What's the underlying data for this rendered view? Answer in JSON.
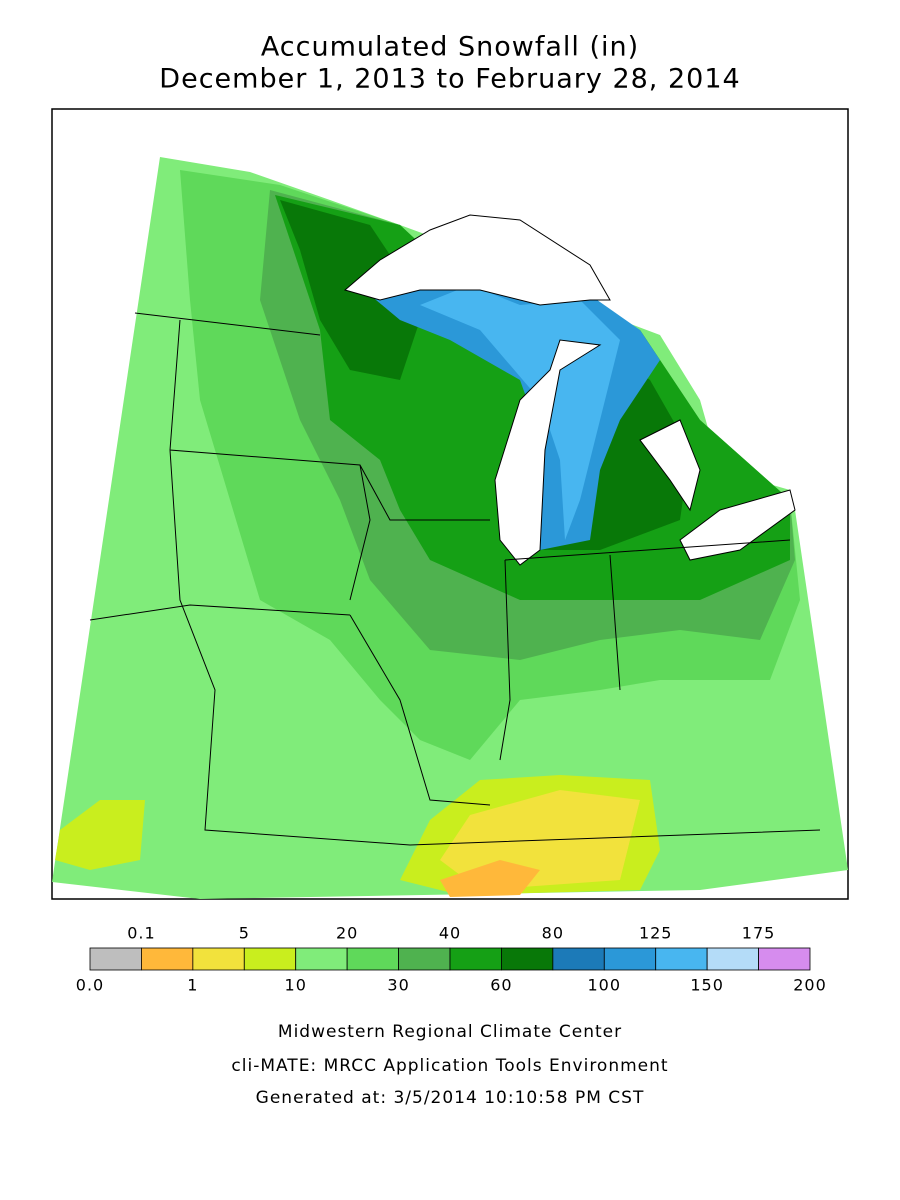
{
  "header": {
    "title": "Accumulated Snowfall (in)",
    "subtitle": "December 1, 2013 to February 28, 2014"
  },
  "legend": {
    "colors": [
      "#bebebe",
      "#ffb83a",
      "#f2e23c",
      "#c9ee1e",
      "#80ec7a",
      "#5fd95a",
      "#4fb24f",
      "#15a015",
      "#087808",
      "#1c7ab8",
      "#2b98d8",
      "#48b6f0",
      "#b4dcf8",
      "#d68cee"
    ],
    "upper_labels": [
      "0.1",
      "5",
      "20",
      "40",
      "80",
      "125",
      "175"
    ],
    "lower_labels": [
      "0.0",
      "1",
      "10",
      "30",
      "60",
      "100",
      "150",
      "200"
    ]
  },
  "footer": {
    "lines": [
      "Midwestern Regional Climate Center",
      "cli-MATE: MRCC Application Tools Environment",
      "Generated at: 3/5/2014 10:10:58 PM CST"
    ]
  }
}
